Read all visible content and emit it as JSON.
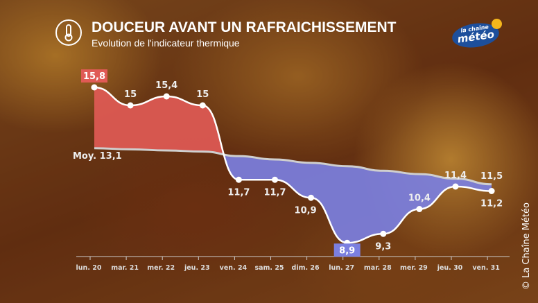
{
  "header": {
    "title": "DOUCEUR AVANT UN RAFRAICHISSEMENT",
    "subtitle": "Evolution de l'indicateur thermique"
  },
  "logo": {
    "line1": "la chaîne",
    "line2": "météo"
  },
  "copyright": "© La Chaîne Météo",
  "colors": {
    "above": "#e05a55",
    "below": "#7b7fe0",
    "line": "#ffffff",
    "avg": "#cfcfcf"
  },
  "chart_data": {
    "type": "area",
    "title": "DOUCEUR AVANT UN RAFRAICHISSEMENT",
    "subtitle": "Evolution de l'indicateur thermique",
    "categories": [
      "lun. 20",
      "mar. 21",
      "mer. 22",
      "jeu. 23",
      "ven. 24",
      "sam. 25",
      "dim. 26",
      "lun. 27",
      "mar. 28",
      "mer. 29",
      "jeu. 30",
      "ven. 31"
    ],
    "series": [
      {
        "name": "Indicateur thermique",
        "values": [
          15.8,
          15,
          15.4,
          15,
          11.7,
          11.7,
          10.9,
          8.9,
          9.3,
          10.4,
          11.4,
          11.2
        ]
      },
      {
        "name": "Moyenne",
        "values": [
          13.1,
          13.05,
          13.0,
          12.95,
          12.75,
          12.6,
          12.45,
          12.3,
          12.1,
          11.95,
          11.75,
          11.5
        ]
      }
    ],
    "labels": {
      "avg_start": "Moy. 13,1",
      "avg_end": "11,5",
      "values": [
        "15,8",
        "15",
        "15,4",
        "15",
        "11,7",
        "11,7",
        "10,9",
        "8,9",
        "9,3",
        "10,4",
        "11,4",
        "11,2"
      ]
    },
    "ylim": [
      8.5,
      16.2
    ]
  }
}
